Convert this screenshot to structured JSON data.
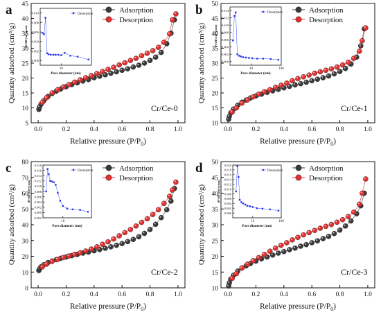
{
  "figure": {
    "panels": [
      "a",
      "b",
      "c",
      "d"
    ]
  },
  "chart_data": [
    {
      "panel": "a",
      "type": "scatter",
      "sample": "Cr/Ce-0",
      "xlabel": "Relative pressure (P/P",
      "xlabel_sub": "0",
      "xlabel_end": ")",
      "ylabel": "Quantity adsorbed (cm³/g)",
      "xlim": [
        -0.05,
        1.05
      ],
      "ylim": [
        5,
        45
      ],
      "xticks": [
        "0.0",
        "0.2",
        "0.4",
        "0.6",
        "0.8",
        "1.0"
      ],
      "xtick_vals": [
        0,
        0.2,
        0.4,
        0.6,
        0.8,
        1.0
      ],
      "yticks": [
        "5",
        "10",
        "15",
        "20",
        "25",
        "30",
        "35",
        "40",
        "45"
      ],
      "ytick_vals": [
        5,
        10,
        15,
        20,
        25,
        30,
        35,
        40,
        45
      ],
      "series": [
        {
          "name": "Adsorption",
          "color": "#3a3a3a",
          "x": [
            0.005,
            0.01,
            0.02,
            0.04,
            0.07,
            0.1,
            0.13,
            0.16,
            0.2,
            0.24,
            0.28,
            0.32,
            0.36,
            0.4,
            0.44,
            0.48,
            0.52,
            0.56,
            0.6,
            0.64,
            0.68,
            0.72,
            0.76,
            0.8,
            0.84,
            0.88,
            0.92,
            0.95,
            0.975
          ],
          "y": [
            9.5,
            10.3,
            11.2,
            12.4,
            13.8,
            14.8,
            15.6,
            16.3,
            17.1,
            17.8,
            18.4,
            19.0,
            19.5,
            20.1,
            20.6,
            21.1,
            21.6,
            22.1,
            22.6,
            23.1,
            23.7,
            24.3,
            25.0,
            25.9,
            27.0,
            28.6,
            31.5,
            35.0,
            39.5
          ]
        },
        {
          "name": "Desorption",
          "color": "#e03030",
          "x": [
            0.985,
            0.96,
            0.94,
            0.9,
            0.86,
            0.82,
            0.78,
            0.74,
            0.7,
            0.66,
            0.62,
            0.58,
            0.54,
            0.5,
            0.46,
            0.42,
            0.38,
            0.34,
            0.3,
            0.26,
            0.22,
            0.18,
            0.14,
            0.1,
            0.06,
            0.03
          ],
          "y": [
            41.5,
            39.5,
            34.8,
            32.0,
            30.3,
            29.2,
            28.3,
            27.5,
            26.6,
            25.9,
            25.1,
            24.4,
            23.6,
            22.9,
            22.2,
            21.5,
            20.8,
            20.1,
            19.4,
            18.6,
            17.8,
            17.0,
            16.1,
            15.0,
            13.4,
            11.8
          ]
        }
      ],
      "inset": {
        "type": "line",
        "xlabel": "Pore diameter (nm)",
        "ylabel": "dV/dD (cm³/g·nm)",
        "legend": "Desorption",
        "xscale": "log",
        "xlim": [
          2,
          100
        ],
        "ylim": [
          -0.001,
          0.011
        ],
        "xticks": [
          "10"
        ],
        "xtick_vals": [
          10
        ],
        "yticks": [
          "0.000",
          "0.002",
          "0.004",
          "0.006",
          "0.008",
          "0.010"
        ],
        "ytick_vals": [
          0,
          0.002,
          0.004,
          0.006,
          0.008,
          0.01
        ],
        "x": [
          2.4,
          2.7,
          3.0,
          3.4,
          3.8,
          4.5,
          5.5,
          6.5,
          8,
          10,
          13,
          20,
          35,
          80
        ],
        "y": [
          0.0058,
          0.0055,
          0.009,
          0.0015,
          0.0013,
          0.0012,
          0.0012,
          0.0012,
          0.0012,
          0.0011,
          0.0016,
          0.001,
          0.0008,
          0.0002
        ]
      }
    },
    {
      "panel": "b",
      "type": "scatter",
      "sample": "Cr/Ce-1",
      "xlabel": "Relative pressure (P/P",
      "xlabel_sub": "0",
      "xlabel_end": ")",
      "ylabel": "Quantity adsorbed (cm³/g)",
      "xlim": [
        -0.05,
        1.05
      ],
      "ylim": [
        10,
        50
      ],
      "xticks": [
        "0.0",
        "0.2",
        "0.4",
        "0.6",
        "0.8",
        "1.0"
      ],
      "xtick_vals": [
        0,
        0.2,
        0.4,
        0.6,
        0.8,
        1.0
      ],
      "yticks": [
        "10",
        "15",
        "20",
        "25",
        "30",
        "35",
        "40",
        "45",
        "50"
      ],
      "ytick_vals": [
        10,
        15,
        20,
        25,
        30,
        35,
        40,
        45,
        50
      ],
      "series": [
        {
          "name": "Adsorption",
          "color": "#3a3a3a",
          "x": [
            0.005,
            0.01,
            0.02,
            0.04,
            0.07,
            0.1,
            0.13,
            0.16,
            0.2,
            0.24,
            0.28,
            0.32,
            0.36,
            0.4,
            0.44,
            0.48,
            0.52,
            0.56,
            0.6,
            0.64,
            0.68,
            0.72,
            0.76,
            0.8,
            0.84,
            0.88,
            0.92,
            0.95,
            0.975
          ],
          "y": [
            11.2,
            12.2,
            13.3,
            14.6,
            15.9,
            16.9,
            17.6,
            18.3,
            19.0,
            19.6,
            20.2,
            20.7,
            21.2,
            21.7,
            22.2,
            22.7,
            23.1,
            23.6,
            24.1,
            24.6,
            25.1,
            25.7,
            26.4,
            27.2,
            28.2,
            29.7,
            32.0,
            35.8,
            41.5
          ]
        },
        {
          "name": "Desorption",
          "color": "#e03030",
          "x": [
            0.985,
            0.96,
            0.94,
            0.9,
            0.86,
            0.82,
            0.78,
            0.74,
            0.7,
            0.66,
            0.62,
            0.58,
            0.54,
            0.5,
            0.46,
            0.42,
            0.38,
            0.34,
            0.3,
            0.26,
            0.22,
            0.18,
            0.14,
            0.1,
            0.06,
            0.03
          ],
          "y": [
            41.8,
            37.5,
            34.0,
            31.6,
            30.3,
            29.4,
            28.7,
            28.1,
            27.6,
            27.1,
            26.6,
            26.0,
            25.4,
            24.8,
            24.1,
            23.3,
            22.6,
            21.9,
            21.1,
            20.4,
            19.6,
            18.7,
            17.7,
            16.6,
            15.0,
            13.6
          ]
        }
      ],
      "inset": {
        "type": "line",
        "xlabel": "Pore diameter (nm)",
        "ylabel": "dV/dD (cm³/g·nm)",
        "legend": "Desorption",
        "xscale": "log",
        "xlim": [
          2,
          100
        ],
        "ylim": [
          -0.001,
          0.015
        ],
        "xticks": [
          "10",
          "100"
        ],
        "xtick_vals": [
          10,
          100
        ],
        "yticks": [
          "0.000",
          "0.002",
          "0.004",
          "0.006",
          "0.008",
          "0.010",
          "0.012",
          "0.014"
        ],
        "ytick_vals": [
          0,
          0.002,
          0.004,
          0.006,
          0.008,
          0.01,
          0.012,
          0.014
        ],
        "x": [
          2.5,
          2.8,
          3.1,
          3.5,
          4.0,
          4.6,
          5.5,
          6.8,
          8.5,
          11,
          16,
          25,
          45,
          80
        ],
        "y": [
          0.0058,
          0.0125,
          0.0135,
          0.002,
          0.0016,
          0.0014,
          0.0012,
          0.0011,
          0.001,
          0.0009,
          0.0008,
          0.0008,
          0.0007,
          0.0005
        ]
      }
    },
    {
      "panel": "c",
      "type": "scatter",
      "sample": "Cr/Ce-2",
      "xlabel": "Relative pressure (P/P",
      "xlabel_sub": "0",
      "xlabel_end": ")",
      "ylabel": "Quantity adsorbed (cm³/g)",
      "xlim": [
        -0.05,
        1.05
      ],
      "ylim": [
        0,
        80
      ],
      "xticks": [
        "0.0",
        "0.2",
        "0.4",
        "0.6",
        "0.8",
        "1.0"
      ],
      "xtick_vals": [
        0,
        0.2,
        0.4,
        0.6,
        0.8,
        1.0
      ],
      "yticks": [
        "0",
        "10",
        "20",
        "30",
        "40",
        "50",
        "60",
        "70",
        "80"
      ],
      "ytick_vals": [
        0,
        10,
        20,
        30,
        40,
        50,
        60,
        70,
        80
      ],
      "series": [
        {
          "name": "Adsorption",
          "color": "#3a3a3a",
          "x": [
            0.005,
            0.01,
            0.02,
            0.04,
            0.07,
            0.1,
            0.13,
            0.16,
            0.2,
            0.24,
            0.28,
            0.32,
            0.36,
            0.4,
            0.44,
            0.48,
            0.52,
            0.56,
            0.6,
            0.64,
            0.68,
            0.72,
            0.76,
            0.8,
            0.84,
            0.88,
            0.92,
            0.95,
            0.975
          ],
          "y": [
            11.0,
            12.0,
            13.3,
            14.6,
            16.0,
            17.0,
            17.9,
            18.7,
            19.6,
            20.4,
            21.2,
            22.0,
            22.7,
            23.5,
            24.3,
            25.1,
            26.0,
            27.0,
            28.1,
            29.3,
            30.7,
            32.4,
            34.5,
            37.0,
            40.3,
            44.5,
            49.5,
            55.0,
            63.0
          ]
        },
        {
          "name": "Desorption",
          "color": "#e03030",
          "x": [
            0.985,
            0.96,
            0.94,
            0.9,
            0.86,
            0.82,
            0.78,
            0.74,
            0.7,
            0.66,
            0.62,
            0.58,
            0.54,
            0.5,
            0.46,
            0.42,
            0.38,
            0.34,
            0.3,
            0.26,
            0.22,
            0.18,
            0.14,
            0.1,
            0.06,
            0.03
          ],
          "y": [
            67.0,
            62.0,
            58.0,
            53.5,
            49.5,
            46.5,
            43.8,
            41.5,
            39.2,
            37.0,
            35.0,
            33.0,
            31.0,
            29.2,
            27.6,
            26.0,
            24.6,
            23.3,
            22.2,
            21.2,
            20.2,
            19.2,
            18.1,
            16.8,
            15.0,
            13.3
          ]
        }
      ],
      "inset": {
        "type": "line",
        "xlabel": "Pore diameter (nm)",
        "ylabel": "dV/dD (cm³/g·nm)",
        "legend": "Desorption",
        "xscale": "log",
        "xlim": [
          2,
          100
        ],
        "ylim": [
          -0.002,
          0.018
        ],
        "xticks": [
          "10"
        ],
        "xtick_vals": [
          10
        ],
        "yticks": [
          "-0.002",
          "0.000",
          "0.002",
          "0.004",
          "0.006",
          "0.008",
          "0.010",
          "0.012",
          "0.014",
          "0.016",
          "0.018"
        ],
        "ytick_vals": [
          -0.002,
          0,
          0.002,
          0.004,
          0.006,
          0.008,
          0.01,
          0.012,
          0.014,
          0.016,
          0.018
        ],
        "x": [
          2.6,
          2.9,
          3.2,
          3.6,
          4.1,
          4.8,
          5.6,
          6.6,
          8,
          10,
          14,
          22,
          40,
          75
        ],
        "y": [
          0.008,
          0.0165,
          0.0145,
          0.012,
          0.0118,
          0.0115,
          0.0105,
          0.0075,
          0.0045,
          0.0025,
          0.0015,
          0.0012,
          0.001,
          0.0003
        ]
      }
    },
    {
      "panel": "d",
      "type": "scatter",
      "sample": "Cr/Ce-3",
      "xlabel": "Relative pressure (P/P",
      "xlabel_sub": "0",
      "xlabel_end": ")",
      "ylabel": "Quantity adsorbed (cm³/g)",
      "xlim": [
        -0.05,
        1.05
      ],
      "ylim": [
        10,
        50
      ],
      "xticks": [
        "0.0",
        "0.2",
        "0.4",
        "0.6",
        "0.8",
        "1.0"
      ],
      "xtick_vals": [
        0,
        0.2,
        0.4,
        0.6,
        0.8,
        1.0
      ],
      "yticks": [
        "10",
        "15",
        "20",
        "25",
        "30",
        "35",
        "40",
        "45",
        "50"
      ],
      "ytick_vals": [
        10,
        15,
        20,
        25,
        30,
        35,
        40,
        45,
        50
      ],
      "series": [
        {
          "name": "Adsorption",
          "color": "#3a3a3a",
          "x": [
            0.005,
            0.01,
            0.02,
            0.04,
            0.07,
            0.1,
            0.13,
            0.16,
            0.2,
            0.24,
            0.28,
            0.32,
            0.36,
            0.4,
            0.44,
            0.48,
            0.52,
            0.56,
            0.6,
            0.64,
            0.68,
            0.72,
            0.76,
            0.8,
            0.84,
            0.88,
            0.92,
            0.95,
            0.975
          ],
          "y": [
            10.6,
            11.6,
            12.8,
            14.0,
            15.3,
            16.3,
            17.0,
            17.7,
            18.5,
            19.2,
            19.8,
            20.4,
            21.0,
            21.5,
            22.1,
            22.6,
            23.2,
            23.7,
            24.3,
            24.9,
            25.6,
            26.3,
            27.2,
            28.3,
            29.6,
            31.2,
            33.5,
            36.0,
            40.0
          ]
        },
        {
          "name": "Desorption",
          "color": "#e03030",
          "x": [
            0.985,
            0.96,
            0.94,
            0.9,
            0.86,
            0.82,
            0.78,
            0.74,
            0.7,
            0.66,
            0.62,
            0.58,
            0.54,
            0.5,
            0.46,
            0.42,
            0.38,
            0.34,
            0.3,
            0.26,
            0.22,
            0.18,
            0.14,
            0.1,
            0.06,
            0.03
          ],
          "y": [
            44.5,
            40.0,
            36.5,
            34.0,
            32.6,
            31.6,
            30.8,
            30.1,
            29.5,
            28.9,
            28.2,
            27.5,
            26.8,
            26.0,
            25.2,
            24.3,
            23.5,
            22.6,
            21.6,
            20.6,
            19.6,
            18.6,
            17.5,
            16.3,
            14.5,
            13.0
          ]
        }
      ],
      "inset": {
        "type": "line",
        "xlabel": "Pore diameter (nm)",
        "ylabel": "dV/dD (cm³/g·nm)",
        "legend": "Desorption",
        "xscale": "log",
        "xlim": [
          2,
          100
        ],
        "ylim": [
          -0.002,
          0.02
        ],
        "xticks": [
          "10",
          "100"
        ],
        "xtick_vals": [
          10,
          100
        ],
        "yticks": [
          "0.000",
          "0.002",
          "0.004",
          "0.006",
          "0.008",
          "0.010",
          "0.012",
          "0.014",
          "0.016",
          "0.018",
          "0.020"
        ],
        "ytick_vals": [
          0,
          0.002,
          0.004,
          0.006,
          0.008,
          0.01,
          0.012,
          0.014,
          0.016,
          0.018,
          0.02
        ],
        "x": [
          2.6,
          2.9,
          3.2,
          3.5,
          4.0,
          4.6,
          5.5,
          6.5,
          8,
          10,
          14,
          22,
          40,
          80
        ],
        "y": [
          0.009,
          0.0195,
          0.015,
          0.0055,
          0.0045,
          0.004,
          0.0035,
          0.003,
          0.0028,
          0.0025,
          0.002,
          0.0018,
          0.0015,
          0.001
        ]
      }
    }
  ]
}
